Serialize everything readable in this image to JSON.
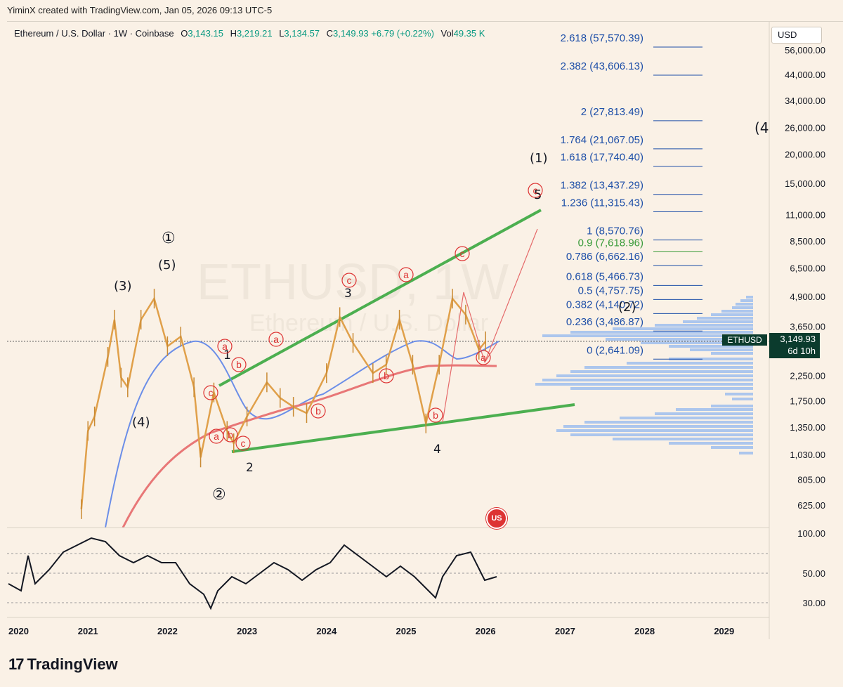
{
  "header": {
    "attribution": "YiminX created with TradingView.com, Jan 05, 2026 09:13 UTC-5"
  },
  "legend": {
    "symbol": "Ethereum / U.S. Dollar · 1W · Coinbase",
    "open_label": "O",
    "open": "3,143.15",
    "high_label": "H",
    "high": "3,219.21",
    "low_label": "L",
    "low": "3,134.57",
    "close_label": "C",
    "close": "3,149.93",
    "change": "+6.79 (+0.22%)",
    "vol_label": "Vol",
    "vol": "49.35 K"
  },
  "currency_button": "USD",
  "price_badge": {
    "symbol": "ETHUSD",
    "price": "3,149.93",
    "countdown": "6d 10h"
  },
  "watermark": {
    "ticker": "ETHUSD, 1W",
    "name": "Ethereum / U.S. Dollar"
  },
  "footer": {
    "brand_mark": "17",
    "brand": "TradingView"
  },
  "colors": {
    "background": "#faf1e6",
    "fib_lines": "#1e4fa8",
    "fib_green": "#3a9b3a",
    "trend_lines": "#4caf50",
    "ma_blue": "#6b8ee8",
    "ma_red": "#e87777",
    "candle": "#e0a04a",
    "wave_red": "#d33",
    "rsi": "#131722",
    "volume_profile": "#8ab4f0"
  },
  "chart_data": {
    "type": "line",
    "price_axis_scale": "log",
    "y_tick_labels": [
      "56,000.00",
      "44,000.00",
      "34,000.00",
      "26,000.00",
      "20,000.00",
      "15,000.00",
      "11,000.00",
      "8,500.00",
      "6,500.00",
      "4,900.00",
      "3,650.00",
      "2,250.00",
      "1,750.00",
      "1,350.00",
      "1,030.00",
      "805.00",
      "625.00"
    ],
    "rsi_tick_labels": [
      "100.00",
      "50.00",
      "30.00"
    ],
    "x_tick_labels": [
      "2020",
      "2021",
      "2022",
      "2023",
      "2024",
      "2025",
      "2026",
      "2027",
      "2028",
      "2029"
    ],
    "price_series": [
      {
        "date": "2020-12",
        "price": 600
      },
      {
        "date": "2021-01",
        "price": 1300
      },
      {
        "date": "2021-02",
        "price": 1500
      },
      {
        "date": "2021-04",
        "price": 2700
      },
      {
        "date": "2021-05",
        "price": 3900
      },
      {
        "date": "2021-06",
        "price": 2200
      },
      {
        "date": "2021-07",
        "price": 2000
      },
      {
        "date": "2021-09",
        "price": 3900
      },
      {
        "date": "2021-11",
        "price": 4800
      },
      {
        "date": "2022-01",
        "price": 3000
      },
      {
        "date": "2022-03",
        "price": 3300
      },
      {
        "date": "2022-05",
        "price": 2000
      },
      {
        "date": "2022-06",
        "price": 1000
      },
      {
        "date": "2022-08",
        "price": 1900
      },
      {
        "date": "2022-10",
        "price": 1300
      },
      {
        "date": "2022-11",
        "price": 1150
      },
      {
        "date": "2023-01",
        "price": 1500
      },
      {
        "date": "2023-04",
        "price": 2100
      },
      {
        "date": "2023-06",
        "price": 1800
      },
      {
        "date": "2023-08",
        "price": 1650
      },
      {
        "date": "2023-10",
        "price": 1550
      },
      {
        "date": "2024-01",
        "price": 2300
      },
      {
        "date": "2024-03",
        "price": 4000
      },
      {
        "date": "2024-05",
        "price": 3100
      },
      {
        "date": "2024-08",
        "price": 2300
      },
      {
        "date": "2024-10",
        "price": 2500
      },
      {
        "date": "2024-12",
        "price": 3900
      },
      {
        "date": "2025-02",
        "price": 2500
      },
      {
        "date": "2025-04",
        "price": 1400
      },
      {
        "date": "2025-06",
        "price": 2500
      },
      {
        "date": "2025-08",
        "price": 4800
      },
      {
        "date": "2025-10",
        "price": 4100
      },
      {
        "date": "2025-12",
        "price": 2900
      },
      {
        "date": "2026-01",
        "price": 3150
      }
    ],
    "fib_levels": [
      {
        "label": "2.618 (57,570.39)",
        "price": 57570.39
      },
      {
        "label": "2.382 (43,606.13)",
        "price": 43606.13
      },
      {
        "label": "2 (27,813.49)",
        "price": 27813.49
      },
      {
        "label": "1.764 (21,067.05)",
        "price": 21067.05
      },
      {
        "label": "1.618 (17,740.40)",
        "price": 17740.4
      },
      {
        "label": "1.382 (13,437.29)",
        "price": 13437.29
      },
      {
        "label": "1.236 (11,315.43)",
        "price": 11315.43
      },
      {
        "label": "1 (8,570.76)",
        "price": 8570.76
      },
      {
        "label": "0.9 (7,618.96)",
        "price": 7618.96,
        "green": true
      },
      {
        "label": "0.786 (6,662.16)",
        "price": 6662.16
      },
      {
        "label": "0.618 (5,466.73)",
        "price": 5466.73
      },
      {
        "label": "0.5 (4,757.75)",
        "price": 4757.75
      },
      {
        "label": "0.382 (4,140.72)",
        "price": 4140.72
      },
      {
        "label": "0.236 (3,486.87)",
        "price": 3486.87
      },
      {
        "label": "0 (2,641.09)",
        "price": 2641.09
      }
    ],
    "wave_labels_black": [
      "①",
      "(5)",
      "(3)",
      "(4)",
      "②",
      "1",
      "2",
      "3",
      "4",
      "5",
      "(1)",
      "(2)",
      "(4"
    ],
    "wave_labels_red": [
      "a",
      "b",
      "c",
      "a",
      "b",
      "c",
      "a",
      "b",
      "c",
      "a",
      "b",
      "c",
      "a",
      "b",
      "c"
    ]
  }
}
